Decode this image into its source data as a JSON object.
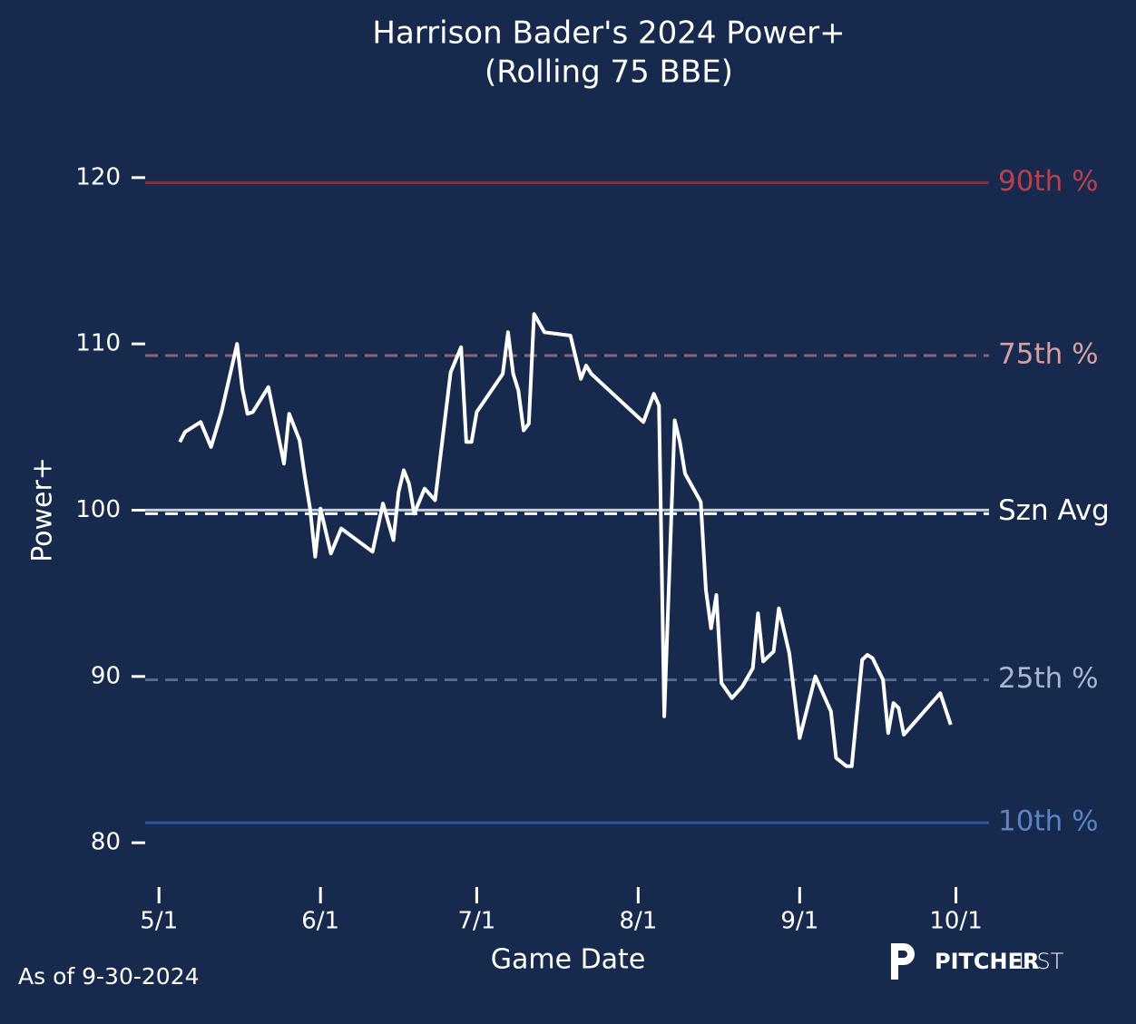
{
  "chart_data": {
    "type": "line",
    "title": "Harrison Bader's 2024 Power+",
    "subtitle": "(Rolling 75 BBE)",
    "x_label": "Game Date",
    "y_label": "Power+",
    "footnote": "As of 9-30-2024",
    "logo": {
      "bold": "PITCHER",
      "light": "LIST"
    },
    "xlim": [
      "4/28",
      "10/7"
    ],
    "xticks": [
      "5/1",
      "6/1",
      "7/1",
      "8/1",
      "9/1",
      "10/1"
    ],
    "ylim": [
      77.5,
      122.5
    ],
    "yticks": [
      80,
      90,
      100,
      110,
      120
    ],
    "reference_lines": [
      {
        "label": "90th %",
        "value": 119.7,
        "color": "#7e3445",
        "label_color": "#b8404e",
        "style": "solid"
      },
      {
        "label": "75th %",
        "value": 109.3,
        "color": "#8e6478",
        "label_color": "#d4a0a4",
        "style": "dashed"
      },
      {
        "label": "Szn Avg",
        "value": 99.9,
        "color": "#c9ccd4",
        "label_color": "#ffffff",
        "style": "avg"
      },
      {
        "label": "25th %",
        "value": 89.8,
        "color": "#56698f",
        "label_color": "#a6b6d6",
        "style": "dashed"
      },
      {
        "label": "10th %",
        "value": 81.2,
        "color": "#2c5896",
        "label_color": "#5c84c2",
        "style": "solid"
      }
    ],
    "x": [
      "5/5",
      "5/6",
      "5/9",
      "5/11",
      "5/13",
      "5/16",
      "5/17",
      "5/18",
      "5/19",
      "5/22",
      "5/25",
      "5/26",
      "5/28",
      "5/29",
      "5/30",
      "5/31",
      "6/1",
      "6/3",
      "6/5",
      "6/11",
      "6/13",
      "6/15",
      "6/16",
      "6/17",
      "6/18",
      "6/19",
      "6/21",
      "6/23",
      "6/26",
      "6/28",
      "6/29",
      "6/30",
      "7/1",
      "7/6",
      "7/7",
      "7/8",
      "7/9",
      "7/10",
      "7/11",
      "7/12",
      "7/14",
      "7/19",
      "7/21",
      "7/22",
      "7/23",
      "8/2",
      "8/4",
      "8/5",
      "8/6",
      "8/8",
      "8/9",
      "8/10",
      "8/13",
      "8/14",
      "8/15",
      "8/16",
      "8/17",
      "8/19",
      "8/21",
      "8/23",
      "8/24",
      "8/25",
      "8/27",
      "8/28",
      "8/30",
      "9/1",
      "9/4",
      "9/7",
      "9/8",
      "9/10",
      "9/11",
      "9/13",
      "9/14",
      "9/15",
      "9/17",
      "9/18",
      "9/19",
      "9/20",
      "9/21",
      "9/28",
      "9/30"
    ],
    "series": [
      {
        "color": "#ffffff",
        "values": [
          104.1,
          104.7,
          105.3,
          103.8,
          105.9,
          110.0,
          107.3,
          105.8,
          105.9,
          107.4,
          102.8,
          105.8,
          104.2,
          102.0,
          100.1,
          97.2,
          100.1,
          97.4,
          98.9,
          97.5,
          100.4,
          98.2,
          101.1,
          102.4,
          101.6,
          99.8,
          101.3,
          100.6,
          108.3,
          109.8,
          104.1,
          104.1,
          105.9,
          108.2,
          110.7,
          108.2,
          107.2,
          104.8,
          105.2,
          111.8,
          110.7,
          110.5,
          107.9,
          108.7,
          108.2,
          105.3,
          107.0,
          106.3,
          87.6,
          105.4,
          104.1,
          102.2,
          100.5,
          95.2,
          92.9,
          94.9,
          89.6,
          88.7,
          89.4,
          90.5,
          93.8,
          90.9,
          91.5,
          94.1,
          91.4,
          86.3,
          90.0,
          87.9,
          85.1,
          84.6,
          84.6,
          91.0,
          91.3,
          91.1,
          89.8,
          86.6,
          88.4,
          88.1,
          86.5,
          89.0,
          87.1
        ]
      }
    ]
  }
}
